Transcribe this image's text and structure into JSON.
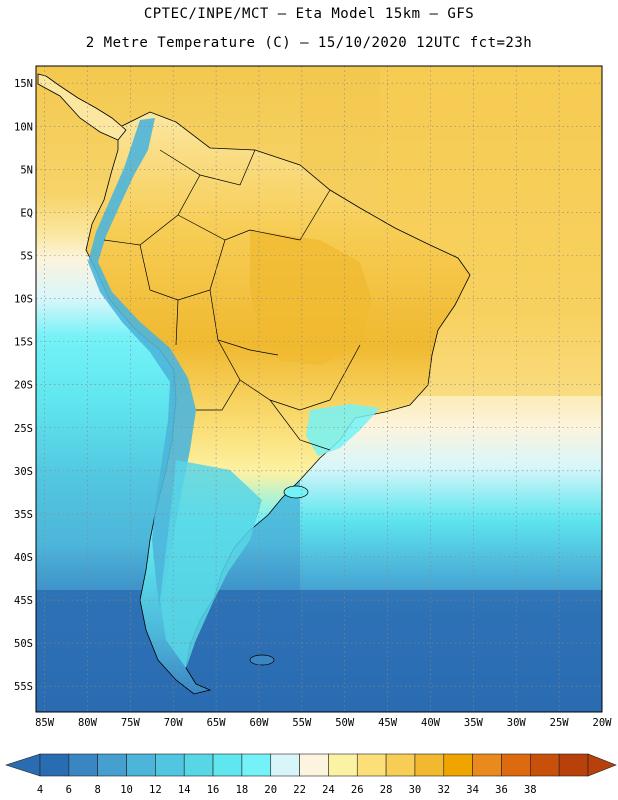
{
  "title_line1": "CPTEC/INPE/MCT –  Eta Model 15km – GFS",
  "title_line2": "2 Metre Temperature (C) – 15/10/2020 12UTC fct=23h",
  "map": {
    "lat_labels": [
      "15N",
      "10N",
      "5N",
      "EQ",
      "5S",
      "10S",
      "15S",
      "20S",
      "25S",
      "30S",
      "35S",
      "40S",
      "45S",
      "50S",
      "55S"
    ],
    "lon_labels": [
      "85W",
      "80W",
      "75W",
      "70W",
      "65W",
      "60W",
      "55W",
      "50W",
      "45W",
      "40W",
      "35W",
      "30W",
      "25W",
      "20W"
    ],
    "lat_range": [
      17,
      -58
    ],
    "lon_range": [
      -86,
      -20
    ],
    "grid": true,
    "projection": "cylindrical equidistant"
  },
  "colorbar": {
    "ticks": [
      "4",
      "6",
      "8",
      "10",
      "12",
      "14",
      "16",
      "18",
      "20",
      "22",
      "24",
      "26",
      "28",
      "30",
      "32",
      "34",
      "36",
      "38"
    ],
    "colors": [
      "#2a6cb1",
      "#3a86c3",
      "#45a0cf",
      "#4db5da",
      "#52c6e0",
      "#57d6e6",
      "#5fe6ef",
      "#74f2f7",
      "#d8f6fa",
      "#fcf4de",
      "#fcf2a4",
      "#fbe07a",
      "#f7cd55",
      "#f0b930",
      "#f0a400",
      "#ea8a1c",
      "#dd6a0e",
      "#c8500a",
      "#b8400a"
    ],
    "under_color": "#2a6cb1",
    "over_color": "#b8400a"
  }
}
